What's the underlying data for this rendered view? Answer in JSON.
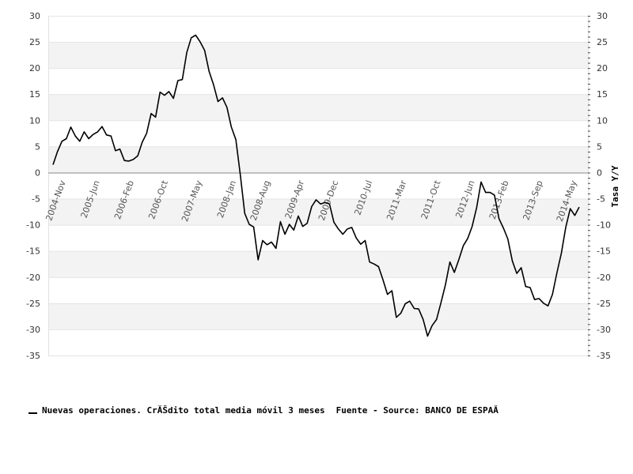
{
  "chart_data": {
    "type": "line",
    "ylabel_right": "Tasa Y/Y",
    "ylim": [
      -35,
      30
    ],
    "yticks": [
      30,
      25,
      20,
      15,
      10,
      5,
      0,
      -5,
      -10,
      -15,
      -20,
      -25,
      -30,
      -35
    ],
    "grid": true,
    "legend_position": "bottom-left",
    "x_tick_labels": [
      "2004-Nov",
      "2005-Jun",
      "2006-Feb",
      "2006-Oct",
      "2007-May",
      "2008-Jan",
      "2008-Aug",
      "2009-Apr",
      "2009-Dec",
      "2010-Jul",
      "2011-Mar",
      "2011-Oct",
      "2012-Jun",
      "2013-Feb",
      "2013-Sep",
      "2014-May"
    ],
    "series": [
      {
        "name": "Nuevas operaciones. CrĂŠdito total media móvil 3 meses",
        "color": "#000000",
        "values": [
          1.5,
          4.0,
          6.0,
          6.5,
          8.7,
          7.0,
          6.0,
          7.8,
          6.5,
          7.3,
          7.8,
          8.8,
          7.2,
          7.0,
          4.2,
          4.5,
          2.3,
          2.2,
          2.5,
          3.2,
          5.8,
          7.5,
          11.3,
          10.6,
          15.4,
          14.8,
          15.5,
          14.2,
          17.6,
          17.8,
          23.0,
          25.8,
          26.3,
          25.0,
          23.4,
          19.4,
          16.8,
          13.6,
          14.3,
          12.5,
          8.7,
          6.3,
          -0.4,
          -7.8,
          -9.9,
          -10.4,
          -16.7,
          -13.0,
          -13.8,
          -13.3,
          -14.5,
          -9.4,
          -11.8,
          -9.9,
          -11.0,
          -8.3,
          -10.3,
          -9.7,
          -6.5,
          -5.2,
          -6.0,
          -5.7,
          -6.0,
          -9.5,
          -10.8,
          -11.8,
          -10.8,
          -10.5,
          -12.5,
          -13.7,
          -13.0,
          -17.1,
          -17.5,
          -18.0,
          -20.5,
          -23.3,
          -22.6,
          -27.7,
          -26.9,
          -25.1,
          -24.6,
          -26.0,
          -26.1,
          -28.1,
          -31.3,
          -29.3,
          -28.1,
          -24.9,
          -21.5,
          -17.1,
          -19.1,
          -16.7,
          -14.0,
          -12.6,
          -10.3,
          -6.7,
          -1.8,
          -3.8,
          -3.8,
          -4.3,
          -8.8,
          -10.6,
          -12.7,
          -16.9,
          -19.3,
          -18.2,
          -21.8,
          -22.0,
          -24.3,
          -24.1,
          -25.0,
          -25.5,
          -23.3,
          -19.2,
          -15.4,
          -10.4,
          -6.9,
          -8.2,
          -6.6
        ]
      }
    ],
    "source_text": "Fuente - Source: BANCO DE ESPAĂ"
  }
}
